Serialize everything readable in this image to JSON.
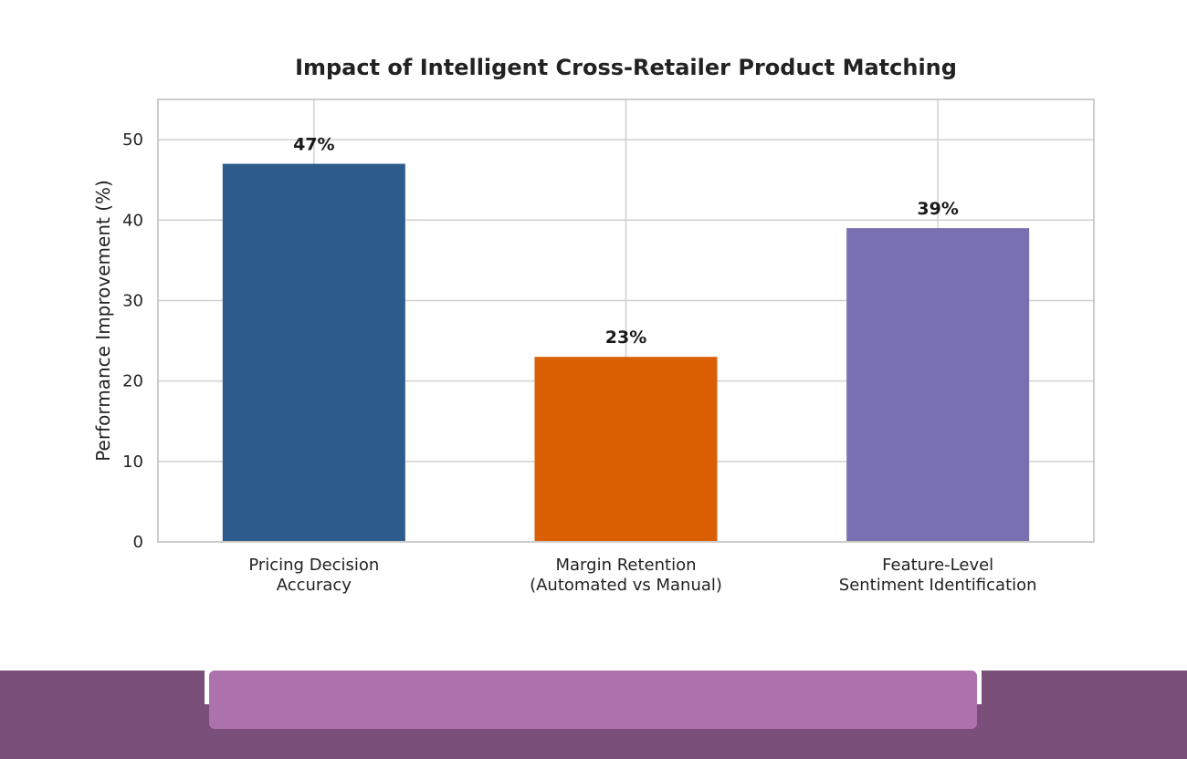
{
  "chart_data": {
    "type": "bar",
    "title": "Impact of Intelligent Cross-Retailer Product Matching",
    "xlabel": "",
    "ylabel": "Performance Improvement (%)",
    "ylim": [
      0,
      55
    ],
    "yticks": [
      0,
      10,
      20,
      30,
      40,
      50
    ],
    "grid": true,
    "categories": [
      [
        "Pricing Decision",
        "Accuracy"
      ],
      [
        "Margin Retention",
        "(Automated vs Manual)"
      ],
      [
        "Feature-Level",
        "Sentiment Identification"
      ]
    ],
    "values": [
      47,
      23,
      39
    ],
    "data_labels": [
      "47%",
      "23%",
      "39%"
    ],
    "colors": [
      "#2d5b8c",
      "#d95f02",
      "#7870b1"
    ]
  },
  "colors": {
    "footer_bar": "#7a4f79",
    "footer_pill": "#ad72ab"
  }
}
